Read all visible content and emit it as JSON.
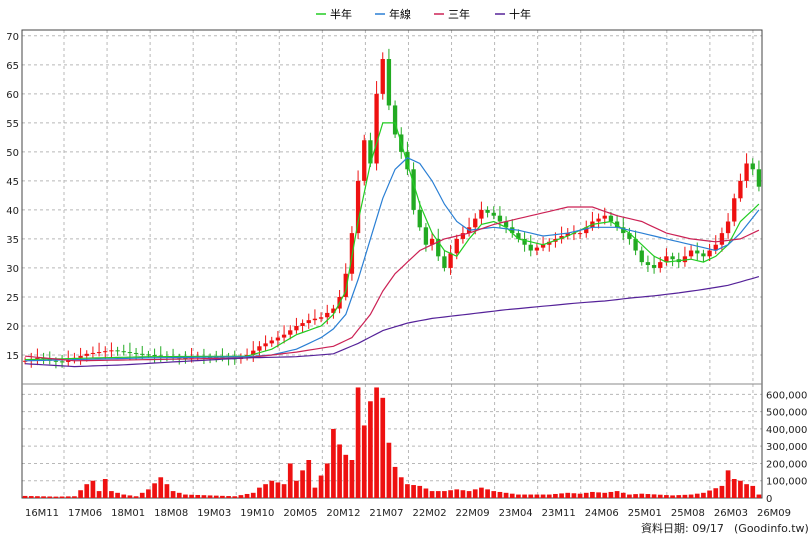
{
  "chart_data": {
    "type": "candlestick",
    "legend": [
      {
        "name": "半年",
        "color": "#22cc22"
      },
      {
        "name": "年線",
        "color": "#2a7fd4"
      },
      {
        "name": "三年",
        "color": "#cc2255"
      },
      {
        "name": "十年",
        "color": "#552299"
      }
    ],
    "colors": {
      "up": "#ee1111",
      "down": "#22aa22",
      "volume": "#ee1111"
    },
    "price_axis": {
      "ylim": [
        10,
        71
      ],
      "ticks": [
        15,
        20,
        25,
        30,
        35,
        40,
        45,
        50,
        55,
        60,
        65,
        70
      ]
    },
    "volume_axis": {
      "ylim": [
        0,
        660000
      ],
      "ticks": [
        0,
        100000,
        200000,
        300000,
        400000,
        500000,
        600000
      ],
      "tick_labels": [
        "0",
        "100,000",
        "200,000",
        "300,000",
        "400,000",
        "500,000",
        "600,000"
      ]
    },
    "x_labels": [
      "16M11",
      "17M06",
      "18M01",
      "18M08",
      "19M03",
      "19M10",
      "20M05",
      "20M12",
      "21M07",
      "22M02",
      "22M09",
      "23M04",
      "23M11",
      "24M06",
      "25M01",
      "25M08",
      "26M03",
      "26M09"
    ],
    "grid": true,
    "price_anchors": [
      [
        0,
        14
      ],
      [
        2,
        14.5
      ],
      [
        4,
        14
      ],
      [
        6,
        13.8
      ],
      [
        8,
        14.5
      ],
      [
        10,
        15.2
      ],
      [
        12,
        15.5
      ],
      [
        14,
        15.8
      ],
      [
        16,
        15.5
      ],
      [
        18,
        15.2
      ],
      [
        20,
        15
      ],
      [
        22,
        14.8
      ],
      [
        24,
        14.6
      ],
      [
        26,
        14.5
      ],
      [
        28,
        14.7
      ],
      [
        30,
        14.6
      ],
      [
        32,
        14.5
      ],
      [
        34,
        14.3
      ],
      [
        36,
        15
      ],
      [
        38,
        16.5
      ],
      [
        40,
        17.5
      ],
      [
        42,
        18.5
      ],
      [
        44,
        20
      ],
      [
        46,
        21
      ],
      [
        48,
        21.5
      ],
      [
        50,
        23
      ],
      [
        51,
        25
      ],
      [
        52,
        29
      ],
      [
        53,
        36
      ],
      [
        54,
        45
      ],
      [
        55,
        52
      ],
      [
        56,
        48
      ],
      [
        57,
        60
      ],
      [
        58,
        66
      ],
      [
        59,
        58
      ],
      [
        60,
        53
      ],
      [
        61,
        50
      ],
      [
        62,
        47
      ],
      [
        63,
        40
      ],
      [
        64,
        37
      ],
      [
        65,
        34
      ],
      [
        66,
        35
      ],
      [
        67,
        32
      ],
      [
        68,
        30
      ],
      [
        70,
        35
      ],
      [
        72,
        37
      ],
      [
        74,
        40
      ],
      [
        76,
        39
      ],
      [
        78,
        37
      ],
      [
        80,
        35
      ],
      [
        82,
        33
      ],
      [
        84,
        34
      ],
      [
        86,
        35
      ],
      [
        88,
        36
      ],
      [
        90,
        36
      ],
      [
        92,
        38
      ],
      [
        94,
        39
      ],
      [
        96,
        37
      ],
      [
        98,
        35
      ],
      [
        100,
        31
      ],
      [
        102,
        30
      ],
      [
        104,
        32
      ],
      [
        106,
        31
      ],
      [
        108,
        33
      ],
      [
        110,
        32
      ],
      [
        112,
        34
      ],
      [
        114,
        38
      ],
      [
        115,
        42
      ],
      [
        116,
        45
      ],
      [
        117,
        48
      ],
      [
        118,
        47
      ],
      [
        119,
        44
      ]
    ],
    "volume_anchors": [
      [
        0,
        12000
      ],
      [
        5,
        8000
      ],
      [
        8,
        10000
      ],
      [
        10,
        80000
      ],
      [
        11,
        100000
      ],
      [
        12,
        40000
      ],
      [
        13,
        110000
      ],
      [
        14,
        40000
      ],
      [
        16,
        20000
      ],
      [
        18,
        10000
      ],
      [
        20,
        50000
      ],
      [
        22,
        120000
      ],
      [
        24,
        40000
      ],
      [
        26,
        20000
      ],
      [
        30,
        15000
      ],
      [
        34,
        10000
      ],
      [
        37,
        30000
      ],
      [
        38,
        60000
      ],
      [
        40,
        100000
      ],
      [
        42,
        80000
      ],
      [
        43,
        200000
      ],
      [
        44,
        100000
      ],
      [
        45,
        160000
      ],
      [
        46,
        220000
      ],
      [
        47,
        60000
      ],
      [
        49,
        200000
      ],
      [
        50,
        400000
      ],
      [
        51,
        310000
      ],
      [
        52,
        250000
      ],
      [
        53,
        220000
      ],
      [
        54,
        640000
      ],
      [
        55,
        420000
      ],
      [
        56,
        560000
      ],
      [
        57,
        640000
      ],
      [
        58,
        580000
      ],
      [
        59,
        320000
      ],
      [
        60,
        180000
      ],
      [
        61,
        120000
      ],
      [
        62,
        80000
      ],
      [
        64,
        70000
      ],
      [
        66,
        40000
      ],
      [
        68,
        40000
      ],
      [
        70,
        50000
      ],
      [
        72,
        40000
      ],
      [
        74,
        60000
      ],
      [
        76,
        40000
      ],
      [
        80,
        20000
      ],
      [
        85,
        20000
      ],
      [
        88,
        30000
      ],
      [
        90,
        25000
      ],
      [
        92,
        35000
      ],
      [
        94,
        30000
      ],
      [
        96,
        40000
      ],
      [
        98,
        20000
      ],
      [
        100,
        25000
      ],
      [
        105,
        15000
      ],
      [
        108,
        20000
      ],
      [
        110,
        30000
      ],
      [
        113,
        70000
      ],
      [
        114,
        160000
      ],
      [
        115,
        110000
      ],
      [
        116,
        100000
      ],
      [
        117,
        80000
      ],
      [
        118,
        70000
      ],
      [
        119,
        20000
      ]
    ],
    "ma_anchors": {
      "半年": [
        [
          0,
          14.2
        ],
        [
          20,
          14.7
        ],
        [
          36,
          14.8
        ],
        [
          40,
          16
        ],
        [
          44,
          18.5
        ],
        [
          48,
          20
        ],
        [
          50,
          22
        ],
        [
          52,
          26
        ],
        [
          54,
          38
        ],
        [
          56,
          48
        ],
        [
          58,
          55
        ],
        [
          60,
          55
        ],
        [
          62,
          48
        ],
        [
          64,
          41
        ],
        [
          66,
          36
        ],
        [
          68,
          33
        ],
        [
          70,
          32
        ],
        [
          72,
          35
        ],
        [
          74,
          37.5
        ],
        [
          76,
          38
        ],
        [
          78,
          37
        ],
        [
          80,
          35
        ],
        [
          84,
          34
        ],
        [
          88,
          35.5
        ],
        [
          92,
          37.5
        ],
        [
          95,
          38
        ],
        [
          98,
          36
        ],
        [
          100,
          34
        ],
        [
          102,
          32
        ],
        [
          104,
          31
        ],
        [
          108,
          31.5
        ],
        [
          110,
          31
        ],
        [
          112,
          32
        ],
        [
          114,
          34
        ],
        [
          116,
          38
        ],
        [
          119,
          41
        ]
      ],
      "年線": [
        [
          0,
          14
        ],
        [
          20,
          14.5
        ],
        [
          36,
          14.7
        ],
        [
          40,
          15
        ],
        [
          44,
          16
        ],
        [
          48,
          18
        ],
        [
          50,
          19.5
        ],
        [
          52,
          22
        ],
        [
          54,
          28
        ],
        [
          56,
          35
        ],
        [
          58,
          42
        ],
        [
          60,
          47
        ],
        [
          62,
          49
        ],
        [
          64,
          48
        ],
        [
          66,
          45
        ],
        [
          68,
          41
        ],
        [
          70,
          38
        ],
        [
          72,
          36.5
        ],
        [
          76,
          37
        ],
        [
          80,
          36.5
        ],
        [
          84,
          35.5
        ],
        [
          88,
          36
        ],
        [
          92,
          37
        ],
        [
          96,
          37
        ],
        [
          100,
          36
        ],
        [
          104,
          35
        ],
        [
          108,
          34
        ],
        [
          112,
          33
        ],
        [
          114,
          34
        ],
        [
          116,
          36
        ],
        [
          119,
          40
        ]
      ],
      "三年": [
        [
          0,
          14.8
        ],
        [
          8,
          14
        ],
        [
          20,
          14.2
        ],
        [
          36,
          14.5
        ],
        [
          44,
          15.5
        ],
        [
          50,
          16.5
        ],
        [
          53,
          18
        ],
        [
          56,
          22
        ],
        [
          58,
          26
        ],
        [
          60,
          29
        ],
        [
          62,
          31
        ],
        [
          64,
          33
        ],
        [
          66,
          34
        ],
        [
          68,
          35
        ],
        [
          72,
          36
        ],
        [
          76,
          37.5
        ],
        [
          80,
          38.5
        ],
        [
          84,
          39.5
        ],
        [
          88,
          40.5
        ],
        [
          92,
          40.5
        ],
        [
          96,
          39
        ],
        [
          100,
          38
        ],
        [
          104,
          36
        ],
        [
          108,
          35
        ],
        [
          112,
          34.5
        ],
        [
          116,
          35
        ],
        [
          119,
          36.5
        ]
      ],
      "十年": [
        [
          0,
          13.5
        ],
        [
          8,
          13
        ],
        [
          16,
          13.3
        ],
        [
          24,
          13.8
        ],
        [
          36,
          14.5
        ],
        [
          44,
          14.7
        ],
        [
          50,
          15.2
        ],
        [
          54,
          17
        ],
        [
          58,
          19.2
        ],
        [
          62,
          20.5
        ],
        [
          66,
          21.3
        ],
        [
          70,
          21.8
        ],
        [
          74,
          22.3
        ],
        [
          78,
          22.8
        ],
        [
          82,
          23.2
        ],
        [
          86,
          23.6
        ],
        [
          90,
          24
        ],
        [
          94,
          24.3
        ],
        [
          98,
          24.8
        ],
        [
          102,
          25.2
        ],
        [
          106,
          25.7
        ],
        [
          110,
          26.3
        ],
        [
          114,
          27
        ],
        [
          119,
          28.5
        ]
      ]
    }
  },
  "footer": {
    "label": "資料日期: 09/17",
    "source": "(Goodinfo.tw)"
  }
}
